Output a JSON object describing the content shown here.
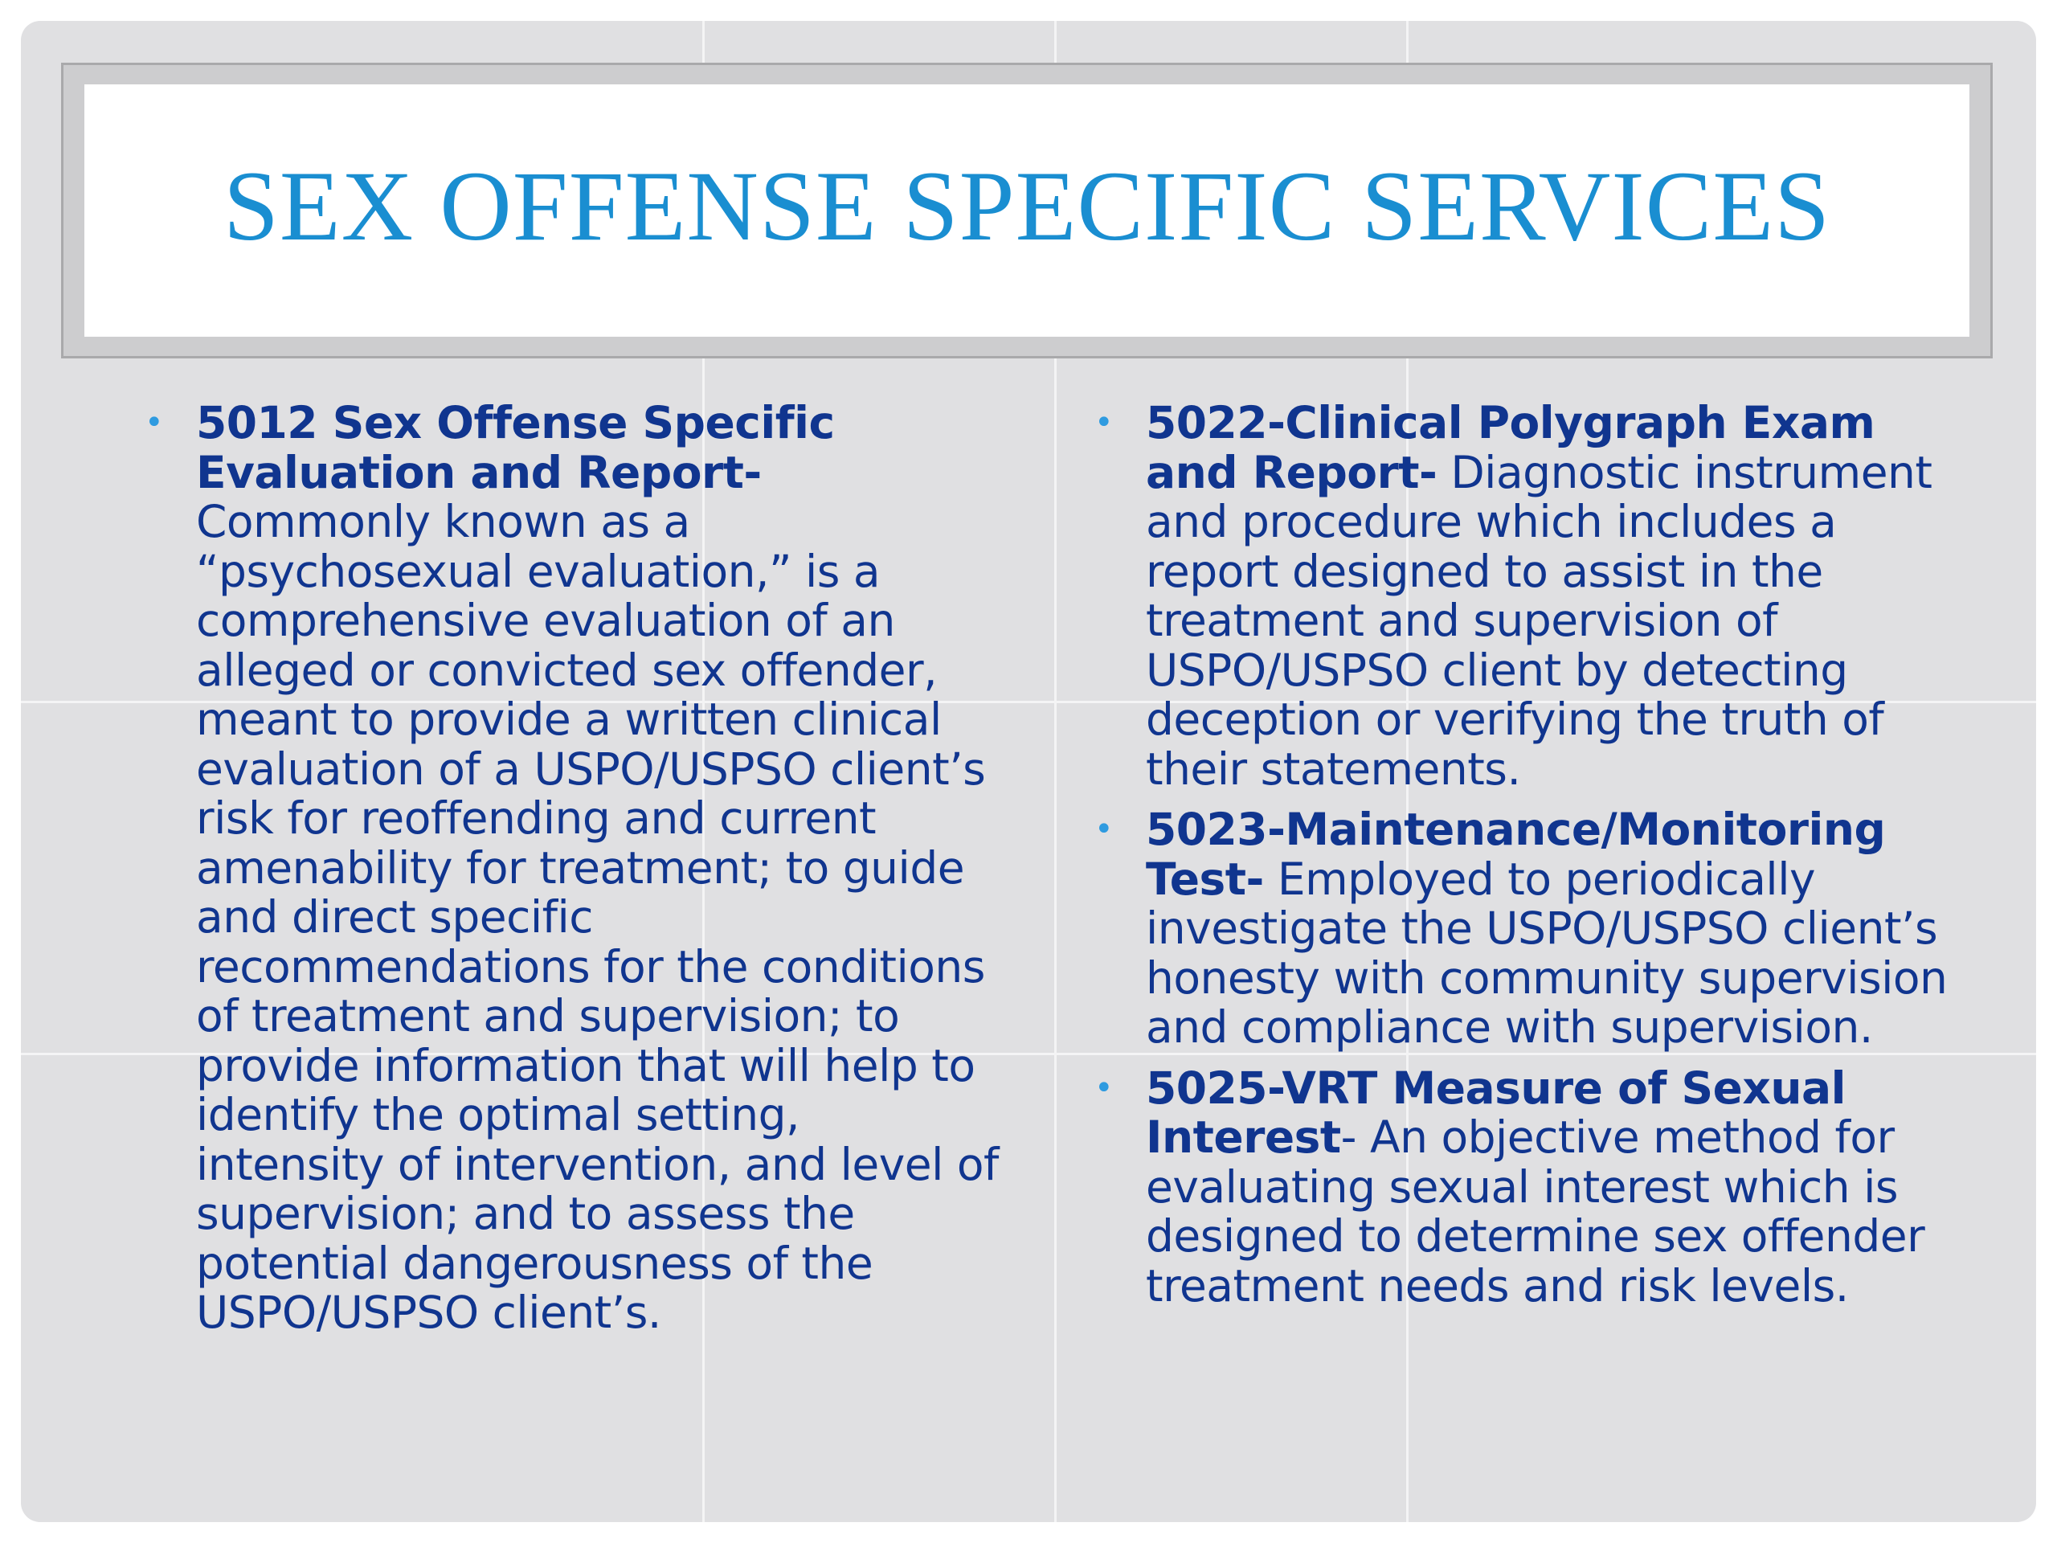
{
  "slide": {
    "title": "SEX OFFENSE SPECIFIC SERVICES",
    "left_column": [
      {
        "heading": "5012 Sex Offense Specific Evaluation and Report-",
        "body": " Commonly known as a “psychosexual evaluation,” is a comprehensive evaluation of an alleged or convicted sex offender, meant to provide a written clinical evaluation of a USPO/USPSO client’s risk for reoffending and current amenability for treatment; to guide and direct specific recommendations for the conditions of treatment and supervision; to provide information that will help to identify the optimal setting, intensity of intervention, and level of supervision; and to assess the potential dangerousness of the USPO/USPSO client’s."
      }
    ],
    "right_column": [
      {
        "heading": "5022-Clinical Polygraph Exam and Report-",
        "body": " Diagnostic instrument and procedure which includes a report designed to assist in the treatment and supervision of USPO/USPSO client by detecting deception or verifying the truth of their statements."
      },
      {
        "heading": "5023-Maintenance/Monitoring Test-",
        "body": " Employed to periodically investigate the USPO/USPSO client’s honesty with community supervision and compliance with supervision."
      },
      {
        "heading": "5025-VRT Measure of Sexual Interest",
        "body": "- An objective method for evaluating sexual interest which is designed to determine sex offender treatment needs and risk levels."
      }
    ],
    "bullet_glyph": "•",
    "colors": {
      "title": "#1a8ed1",
      "body_text": "#10358f",
      "bullet": "#2f9be0",
      "background": "#e0e0e2"
    }
  }
}
